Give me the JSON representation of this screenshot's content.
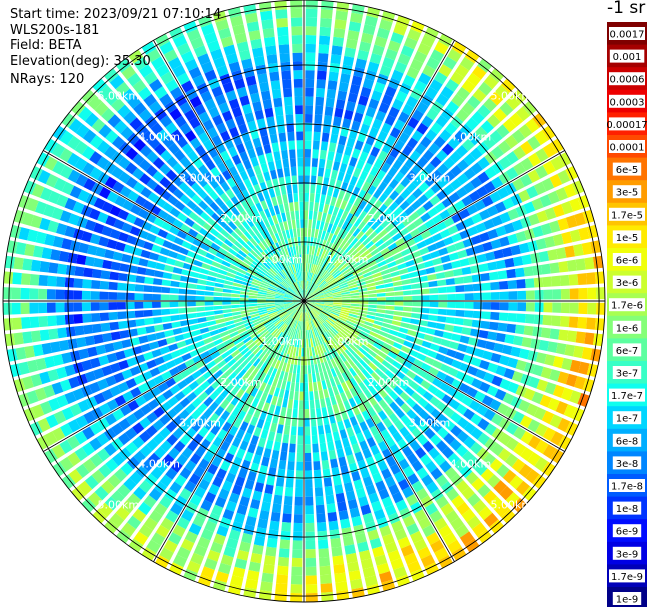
{
  "header": {
    "start_time": "Start time: 2023/09/21 07:10:14",
    "device": "WLS200s-181",
    "field": "Field: BETA",
    "elevation": "Elevation(deg): 35.30",
    "nrays": "NRays: 120"
  },
  "chart_data": {
    "type": "heatmap",
    "projection": "polar",
    "n_rays": 120,
    "range_ring_labels": [
      "1.00km",
      "2.00km",
      "3.00km",
      "4.00km",
      "5.00km"
    ],
    "range_rings_km": [
      1,
      2,
      3,
      4,
      5
    ],
    "max_range_km": 5.1,
    "spoke_angles_deg": [
      0,
      30,
      60,
      90,
      120,
      150,
      180,
      210,
      240,
      270,
      300,
      330
    ],
    "colorbar": {
      "unit_label": "-1 sr",
      "scale": "log",
      "tick_labels": [
        "0.0017",
        "0.001",
        "0.0006",
        "0.0003",
        "0.00017",
        "0.0001",
        "6e-5",
        "3e-5",
        "1.7e-5",
        "1e-5",
        "6e-6",
        "3e-6",
        "1.7e-6",
        "1e-6",
        "6e-7",
        "3e-7",
        "1.7e-7",
        "1e-7",
        "6e-8",
        "3e-8",
        "1.7e-8",
        "1e-8",
        "6e-9",
        "3e-9",
        "1.7e-9",
        "1e-9"
      ],
      "colors": [
        "#7f0000",
        "#a50000",
        "#cc0000",
        "#ee0000",
        "#ff2000",
        "#ff4a00",
        "#ff7400",
        "#ff9c00",
        "#ffc400",
        "#ffea00",
        "#f0ff0a",
        "#ccff2e",
        "#a8ff52",
        "#84ff78",
        "#5cffa0",
        "#38ffc6",
        "#10feee",
        "#00d6ff",
        "#00aeff",
        "#0086ff",
        "#005cff",
        "#0034ff",
        "#000cff",
        "#0000e4",
        "#0000b8",
        "#000088"
      ]
    },
    "beta_profile_by_range_km": [
      {
        "range_km": 0.0,
        "level": 0.46
      },
      {
        "range_km": 1.0,
        "level": 0.44
      },
      {
        "range_km": 1.5,
        "level": 0.42
      },
      {
        "range_km": 2.5,
        "level": 0.33
      },
      {
        "range_km": 3.5,
        "level": 0.25
      },
      {
        "range_km": 4.2,
        "level": 0.38
      },
      {
        "range_km": 4.6,
        "level": 0.5
      },
      {
        "range_km": 5.1,
        "level": 0.55
      }
    ]
  }
}
